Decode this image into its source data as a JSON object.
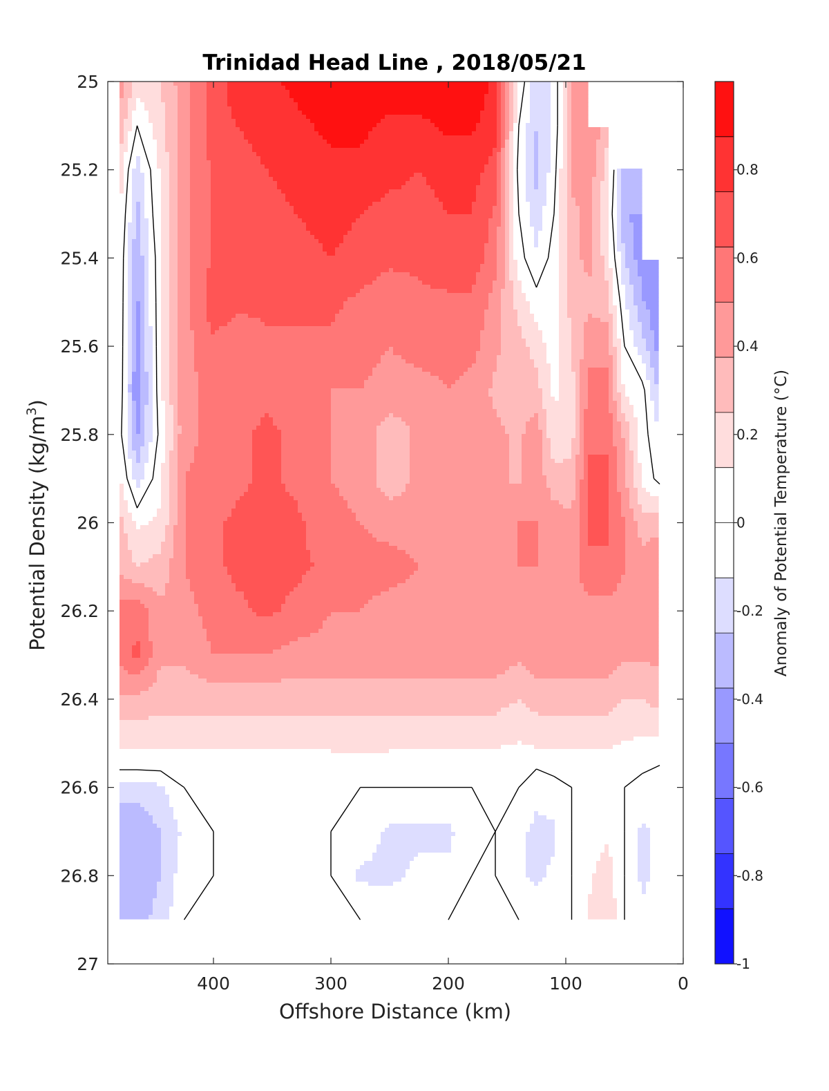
{
  "chart_data": {
    "type": "heatmap",
    "title": "Trinidad Head Line , 2018/05/21",
    "xlabel": "Offshore Distance (km)",
    "ylabel": "Potential Density (kg/m",
    "ylabel_superscript": "3",
    "ylabel_suffix": ")",
    "xlim": [
      490,
      0
    ],
    "ylim": [
      25,
      27
    ],
    "x_reversed": true,
    "y_reversed": true,
    "x_ticks": [
      "400",
      "300",
      "200",
      "100",
      "0"
    ],
    "x_tick_values": [
      400,
      300,
      200,
      100,
      0
    ],
    "y_ticks": [
      "25",
      "25.2",
      "25.4",
      "25.6",
      "25.8",
      "26",
      "26.2",
      "26.4",
      "26.6",
      "26.8",
      "27"
    ],
    "y_tick_values": [
      25,
      25.2,
      25.4,
      25.6,
      25.8,
      26,
      26.2,
      26.4,
      26.6,
      26.8,
      27
    ],
    "colorbar": {
      "label": "Anomaly of Potential Temperature (°C)",
      "range": [
        -1,
        1
      ],
      "levels": 16,
      "tick_labels": [
        "0.8",
        "0.6",
        "0.4",
        "0.2",
        "0",
        "-0.2",
        "-0.4",
        "-0.6",
        "-0.8",
        "-1"
      ],
      "tick_values": [
        0.8,
        0.6,
        0.4,
        0.2,
        0,
        -0.2,
        -0.4,
        -0.6,
        -0.8,
        -1
      ],
      "colormap": "blue-white-red",
      "neg_color": "#0000ff",
      "zero_color": "#ffffff",
      "pos_color": "#ff0000"
    },
    "grid": false,
    "zero_contour_color": "#000000",
    "x": [
      480,
      465,
      445,
      425,
      400,
      380,
      355,
      330,
      300,
      275,
      250,
      225,
      200,
      180,
      160,
      140,
      125,
      110,
      95,
      80,
      65,
      50,
      35,
      20
    ],
    "y": [
      25.0,
      25.1,
      25.2,
      25.3,
      25.4,
      25.5,
      25.6,
      25.7,
      25.8,
      25.9,
      26.0,
      26.1,
      26.2,
      26.3,
      26.4,
      26.5,
      26.55,
      26.6,
      26.7,
      26.8,
      26.9
    ],
    "z": [
      [
        0.45,
        0.2,
        0.25,
        0.45,
        0.7,
        0.8,
        0.85,
        0.9,
        0.95,
        0.95,
        0.95,
        0.95,
        0.95,
        0.95,
        0.85,
        0.1,
        -0.2,
        -0.1,
        0.4,
        null,
        null,
        null,
        null,
        null
      ],
      [
        0.35,
        0.0,
        0.2,
        0.45,
        0.7,
        0.75,
        0.8,
        0.85,
        0.9,
        0.9,
        0.85,
        0.85,
        0.9,
        0.9,
        0.8,
        0.0,
        -0.25,
        -0.1,
        0.4,
        0.5,
        0.3,
        null,
        null,
        null
      ],
      [
        0.2,
        -0.2,
        0.15,
        0.45,
        0.65,
        0.7,
        0.75,
        0.8,
        0.85,
        0.85,
        0.8,
        0.75,
        0.8,
        0.8,
        0.7,
        -0.05,
        -0.3,
        -0.05,
        0.4,
        0.45,
        0.2,
        -0.3,
        null,
        null
      ],
      [
        0.15,
        -0.3,
        0.15,
        0.45,
        0.65,
        0.65,
        0.7,
        0.75,
        0.8,
        0.75,
        0.7,
        0.7,
        0.75,
        0.75,
        0.6,
        0.0,
        -0.2,
        0.0,
        0.35,
        0.4,
        0.15,
        -0.35,
        -0.45,
        null
      ],
      [
        0.1,
        -0.35,
        0.1,
        0.45,
        0.65,
        0.7,
        0.7,
        0.7,
        0.75,
        0.7,
        0.65,
        0.65,
        0.7,
        0.7,
        0.55,
        0.05,
        -0.1,
        0.05,
        0.35,
        0.4,
        0.2,
        -0.25,
        -0.45,
        null
      ],
      [
        0.1,
        -0.4,
        0.1,
        0.45,
        0.7,
        0.65,
        0.65,
        0.65,
        0.65,
        0.6,
        0.55,
        0.6,
        0.6,
        0.6,
        0.45,
        0.2,
        0.05,
        0.05,
        0.3,
        0.35,
        0.3,
        -0.1,
        -0.35,
        -0.5
      ],
      [
        0.1,
        -0.45,
        0.1,
        0.45,
        0.6,
        0.55,
        0.6,
        0.6,
        0.6,
        0.55,
        0.5,
        0.55,
        0.55,
        0.55,
        0.4,
        0.3,
        0.2,
        0.05,
        0.25,
        0.45,
        0.45,
        0.0,
        -0.2,
        -0.45
      ],
      [
        0.1,
        -0.5,
        0.1,
        0.45,
        0.55,
        0.55,
        0.6,
        0.55,
        0.5,
        0.5,
        0.45,
        0.45,
        0.5,
        0.45,
        0.35,
        0.3,
        0.3,
        0.1,
        0.2,
        0.55,
        0.55,
        0.1,
        0.05,
        -0.3
      ],
      [
        0.05,
        -0.4,
        0.05,
        0.45,
        0.55,
        0.6,
        0.65,
        0.6,
        0.5,
        0.45,
        0.3,
        0.4,
        0.45,
        0.4,
        0.4,
        0.35,
        0.45,
        0.15,
        0.2,
        0.6,
        0.6,
        0.35,
        0.05,
        -0.1
      ],
      [
        0.15,
        -0.2,
        0.1,
        0.5,
        0.55,
        0.6,
        0.65,
        0.6,
        0.5,
        0.45,
        0.3,
        0.4,
        0.45,
        0.4,
        0.4,
        0.35,
        0.45,
        0.3,
        0.3,
        0.65,
        0.65,
        0.4,
        0.1,
        -0.05
      ],
      [
        0.3,
        0.1,
        0.15,
        0.5,
        0.6,
        0.65,
        0.65,
        0.65,
        0.55,
        0.5,
        0.45,
        0.45,
        0.45,
        0.45,
        0.4,
        0.5,
        0.5,
        0.45,
        0.4,
        0.65,
        0.65,
        0.5,
        0.3,
        0.35
      ],
      [
        0.35,
        0.25,
        0.3,
        0.5,
        0.6,
        0.65,
        0.65,
        0.65,
        0.6,
        0.55,
        0.55,
        0.5,
        0.5,
        0.5,
        0.5,
        0.5,
        0.5,
        0.5,
        0.45,
        0.6,
        0.6,
        0.5,
        0.45,
        0.45
      ],
      [
        0.55,
        0.6,
        0.4,
        0.45,
        0.55,
        0.6,
        0.65,
        0.6,
        0.5,
        0.5,
        0.45,
        0.45,
        0.45,
        0.45,
        0.45,
        0.4,
        0.45,
        0.45,
        0.45,
        0.45,
        0.45,
        0.45,
        0.45,
        0.45
      ],
      [
        0.55,
        0.65,
        0.4,
        0.4,
        0.5,
        0.5,
        0.5,
        0.45,
        0.45,
        0.45,
        0.45,
        0.45,
        0.45,
        0.45,
        0.45,
        0.4,
        0.45,
        0.45,
        0.45,
        0.45,
        0.45,
        0.4,
        0.4,
        0.4
      ],
      [
        0.35,
        0.35,
        0.3,
        0.3,
        0.3,
        0.3,
        0.3,
        0.3,
        0.3,
        0.3,
        0.3,
        0.3,
        0.3,
        0.3,
        0.3,
        0.25,
        0.3,
        0.3,
        0.3,
        0.3,
        0.3,
        0.25,
        0.25,
        0.3
      ],
      [
        0.15,
        0.15,
        0.15,
        0.15,
        0.15,
        0.15,
        0.15,
        0.15,
        0.15,
        0.15,
        0.15,
        0.15,
        0.15,
        0.15,
        0.15,
        0.12,
        0.15,
        0.15,
        0.15,
        0.15,
        0.15,
        0.12,
        0.1,
        0.1
      ],
      [
        0.05,
        0.05,
        0.05,
        0.05,
        0.05,
        0.05,
        0.05,
        0.05,
        0.08,
        0.08,
        0.08,
        0.05,
        0.05,
        0.05,
        0.05,
        0.02,
        0.02,
        0.05,
        0.05,
        0.05,
        0.05,
        0.05,
        0.03,
        0.0
      ],
      [
        -0.2,
        -0.2,
        -0.15,
        0.0,
        0.0,
        0.0,
        0.0,
        0.0,
        0.0,
        0.0,
        0.0,
        0.0,
        0.0,
        0.0,
        0.0,
        0.0,
        -0.1,
        -0.05,
        0.0,
        0.0,
        0.0,
        0.0,
        -0.05,
        -0.05
      ],
      [
        -0.35,
        -0.35,
        -0.25,
        -0.1,
        0.0,
        0.0,
        0.0,
        0.0,
        0.0,
        -0.05,
        -0.15,
        -0.15,
        -0.15,
        -0.05,
        0.0,
        -0.1,
        -0.15,
        -0.15,
        0.0,
        0.05,
        0.1,
        0.0,
        -0.15,
        -0.1
      ],
      [
        -0.35,
        -0.35,
        -0.25,
        -0.05,
        0.0,
        0.0,
        0.0,
        0.0,
        0.0,
        -0.15,
        -0.15,
        -0.1,
        -0.1,
        0.0,
        0.0,
        -0.1,
        -0.15,
        -0.1,
        0.0,
        0.1,
        0.2,
        0.0,
        -0.15,
        -0.1
      ],
      [
        -0.3,
        -0.3,
        -0.2,
        0.0,
        0.05,
        0.0,
        0.0,
        0.0,
        0.0,
        0.0,
        -0.05,
        -0.05,
        0.0,
        0.0,
        0.0,
        0.0,
        -0.05,
        -0.05,
        0.0,
        0.15,
        0.25,
        0.0,
        -0.1,
        -0.05
      ]
    ]
  }
}
